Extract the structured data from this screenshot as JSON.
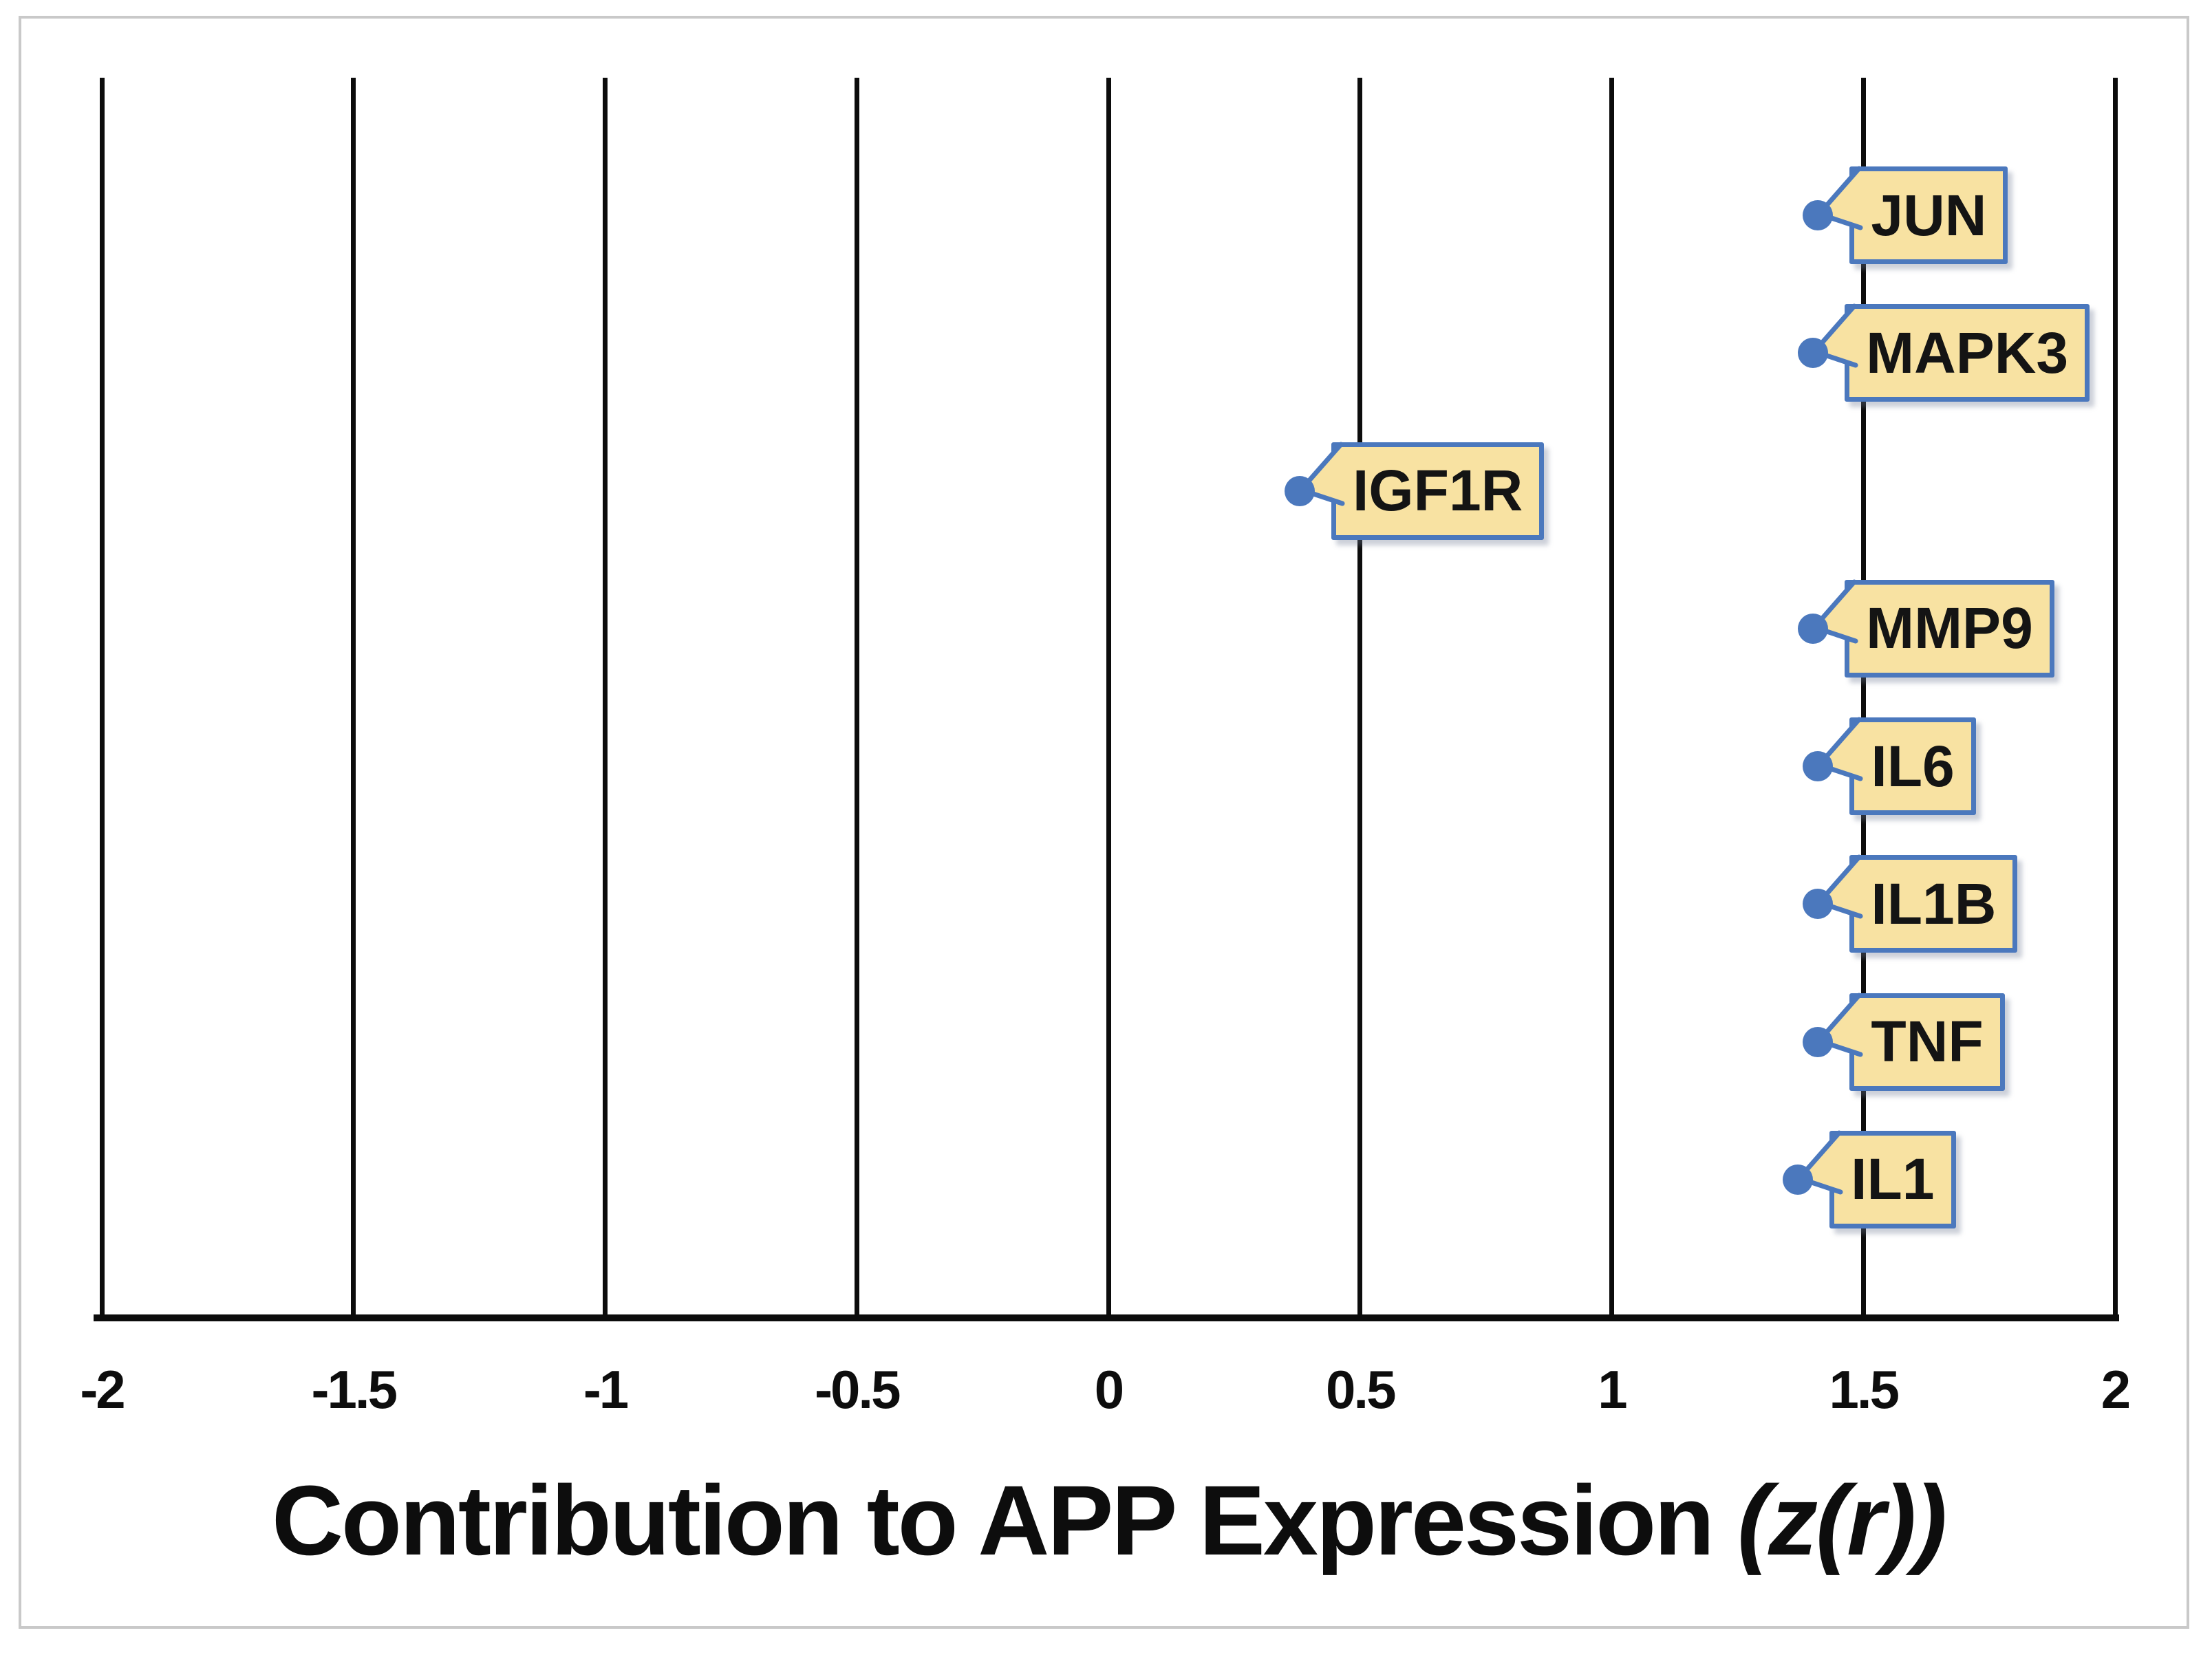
{
  "figure": {
    "title": {
      "main": "Contribution to APP Expression",
      "suffix_italic": "(z(r))"
    },
    "axis": {
      "min": -2,
      "max": 2,
      "tick_labels": [
        "-2",
        "-1.5",
        "-1",
        "-0.5",
        "0",
        "0.5",
        "1",
        "1.5",
        "2"
      ],
      "tick_values": [
        -2,
        -1.5,
        -1,
        -0.5,
        0,
        0.5,
        1,
        1.5,
        2
      ]
    },
    "points": [
      {
        "label": "JUN",
        "value": 1.41
      },
      {
        "label": "MAPK3",
        "value": 1.4
      },
      {
        "label": "IGF1R",
        "value": 0.38
      },
      {
        "label": "MMP9",
        "value": 1.4
      },
      {
        "label": "IL6",
        "value": 1.41
      },
      {
        "label": "IL1B",
        "value": 1.41
      },
      {
        "label": "TNF",
        "value": 1.41
      },
      {
        "label": "IL1",
        "value": 1.37
      }
    ],
    "colors": {
      "callout_fill": "#f8e2a2",
      "callout_border": "#4b78bd",
      "marker": "#4b78bd",
      "gridline": "#0c0c0c",
      "axis_line": "#0c0c0c",
      "frame": "#c9c9c9",
      "text": "#0d0d0d"
    }
  },
  "chart_data": {
    "type": "scatter",
    "title": "",
    "xlabel": "Contribution to APP Expression (z(r))",
    "ylabel": "",
    "xlim": [
      -2,
      2
    ],
    "x_ticks": [
      -2,
      -1.5,
      -1,
      -0.5,
      0,
      0.5,
      1,
      1.5,
      2
    ],
    "grid": "vertical gridlines at 0.5 intervals, black",
    "legend_position": "none",
    "categories": [
      "JUN",
      "MAPK3",
      "IGF1R",
      "MMP9",
      "IL6",
      "IL1B",
      "TNF",
      "IL1"
    ],
    "values": [
      1.41,
      1.4,
      0.38,
      1.4,
      1.41,
      1.41,
      1.41,
      1.37
    ],
    "notes": "Each gene plotted top-to-bottom on evenly spaced rows; blue round marker with yellow rectangular callout label outlined in blue pointing to the marker"
  }
}
